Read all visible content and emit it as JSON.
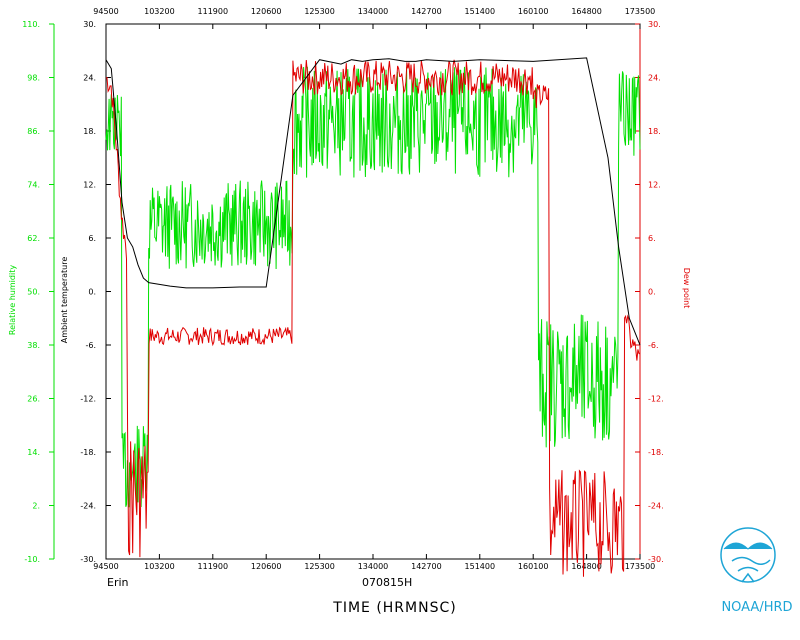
{
  "colors": {
    "temperature": "#000000",
    "dewpoint": "#e00000",
    "humidity": "#00e000",
    "logo": "#1ea5d6"
  },
  "chart_data": {
    "type": "line",
    "xlabel": "TIME (HRMNSC)",
    "date_label": "070815H",
    "storm_label": "Erin",
    "credit": "NOAA/HRD",
    "x_ticks": [
      "94500",
      "103200",
      "111900",
      "120600",
      "125300",
      "134000",
      "142700",
      "151400",
      "160100",
      "164800",
      "173500"
    ],
    "axes": {
      "humidity": {
        "label": "Relative humidity",
        "ylim": [
          -10,
          110
        ],
        "ticks": [
          "110.",
          "98.",
          "86.",
          "74.",
          "62.",
          "50.",
          "38.",
          "26.",
          "14.",
          "2.",
          "-10."
        ]
      },
      "temperature": {
        "label": "Ambient temperature",
        "ylim": [
          -30,
          30
        ],
        "ticks": [
          "30.",
          "24.",
          "18.",
          "12.",
          "6.",
          "0.",
          "-6.",
          "-12.",
          "-18.",
          "-24.",
          "-30."
        ]
      },
      "dewpoint": {
        "label": "Dew point",
        "ylim": [
          -30,
          30
        ],
        "ticks": [
          "30.",
          "24.",
          "18.",
          "12.",
          "6.",
          "0.",
          "-6.",
          "-12.",
          "-18.",
          "-24.",
          "-30."
        ]
      }
    },
    "grid": false,
    "series": [
      {
        "key": "temperature",
        "x": [
          0.0,
          0.1,
          0.2,
          0.3,
          0.4,
          0.5,
          0.6,
          0.7,
          0.8,
          1.0,
          1.2,
          1.5,
          2.0,
          2.5,
          3.0,
          3.5,
          4.0,
          4.4,
          4.6,
          4.8,
          5.0,
          5.3,
          5.6,
          5.8,
          6.0,
          6.5,
          7.0,
          8.0,
          9.0,
          9.4,
          9.6,
          9.8,
          10.0
        ],
        "y": [
          26,
          25,
          18,
          10,
          6,
          5,
          3,
          1.5,
          1,
          0.8,
          0.6,
          0.4,
          0.4,
          0.5,
          0.5,
          22,
          26,
          25.5,
          26,
          25.8,
          26,
          26.1,
          25.8,
          25.8,
          26,
          25.8,
          26,
          25.8,
          26.2,
          15,
          5,
          -3,
          -6
        ]
      }
    ]
  }
}
